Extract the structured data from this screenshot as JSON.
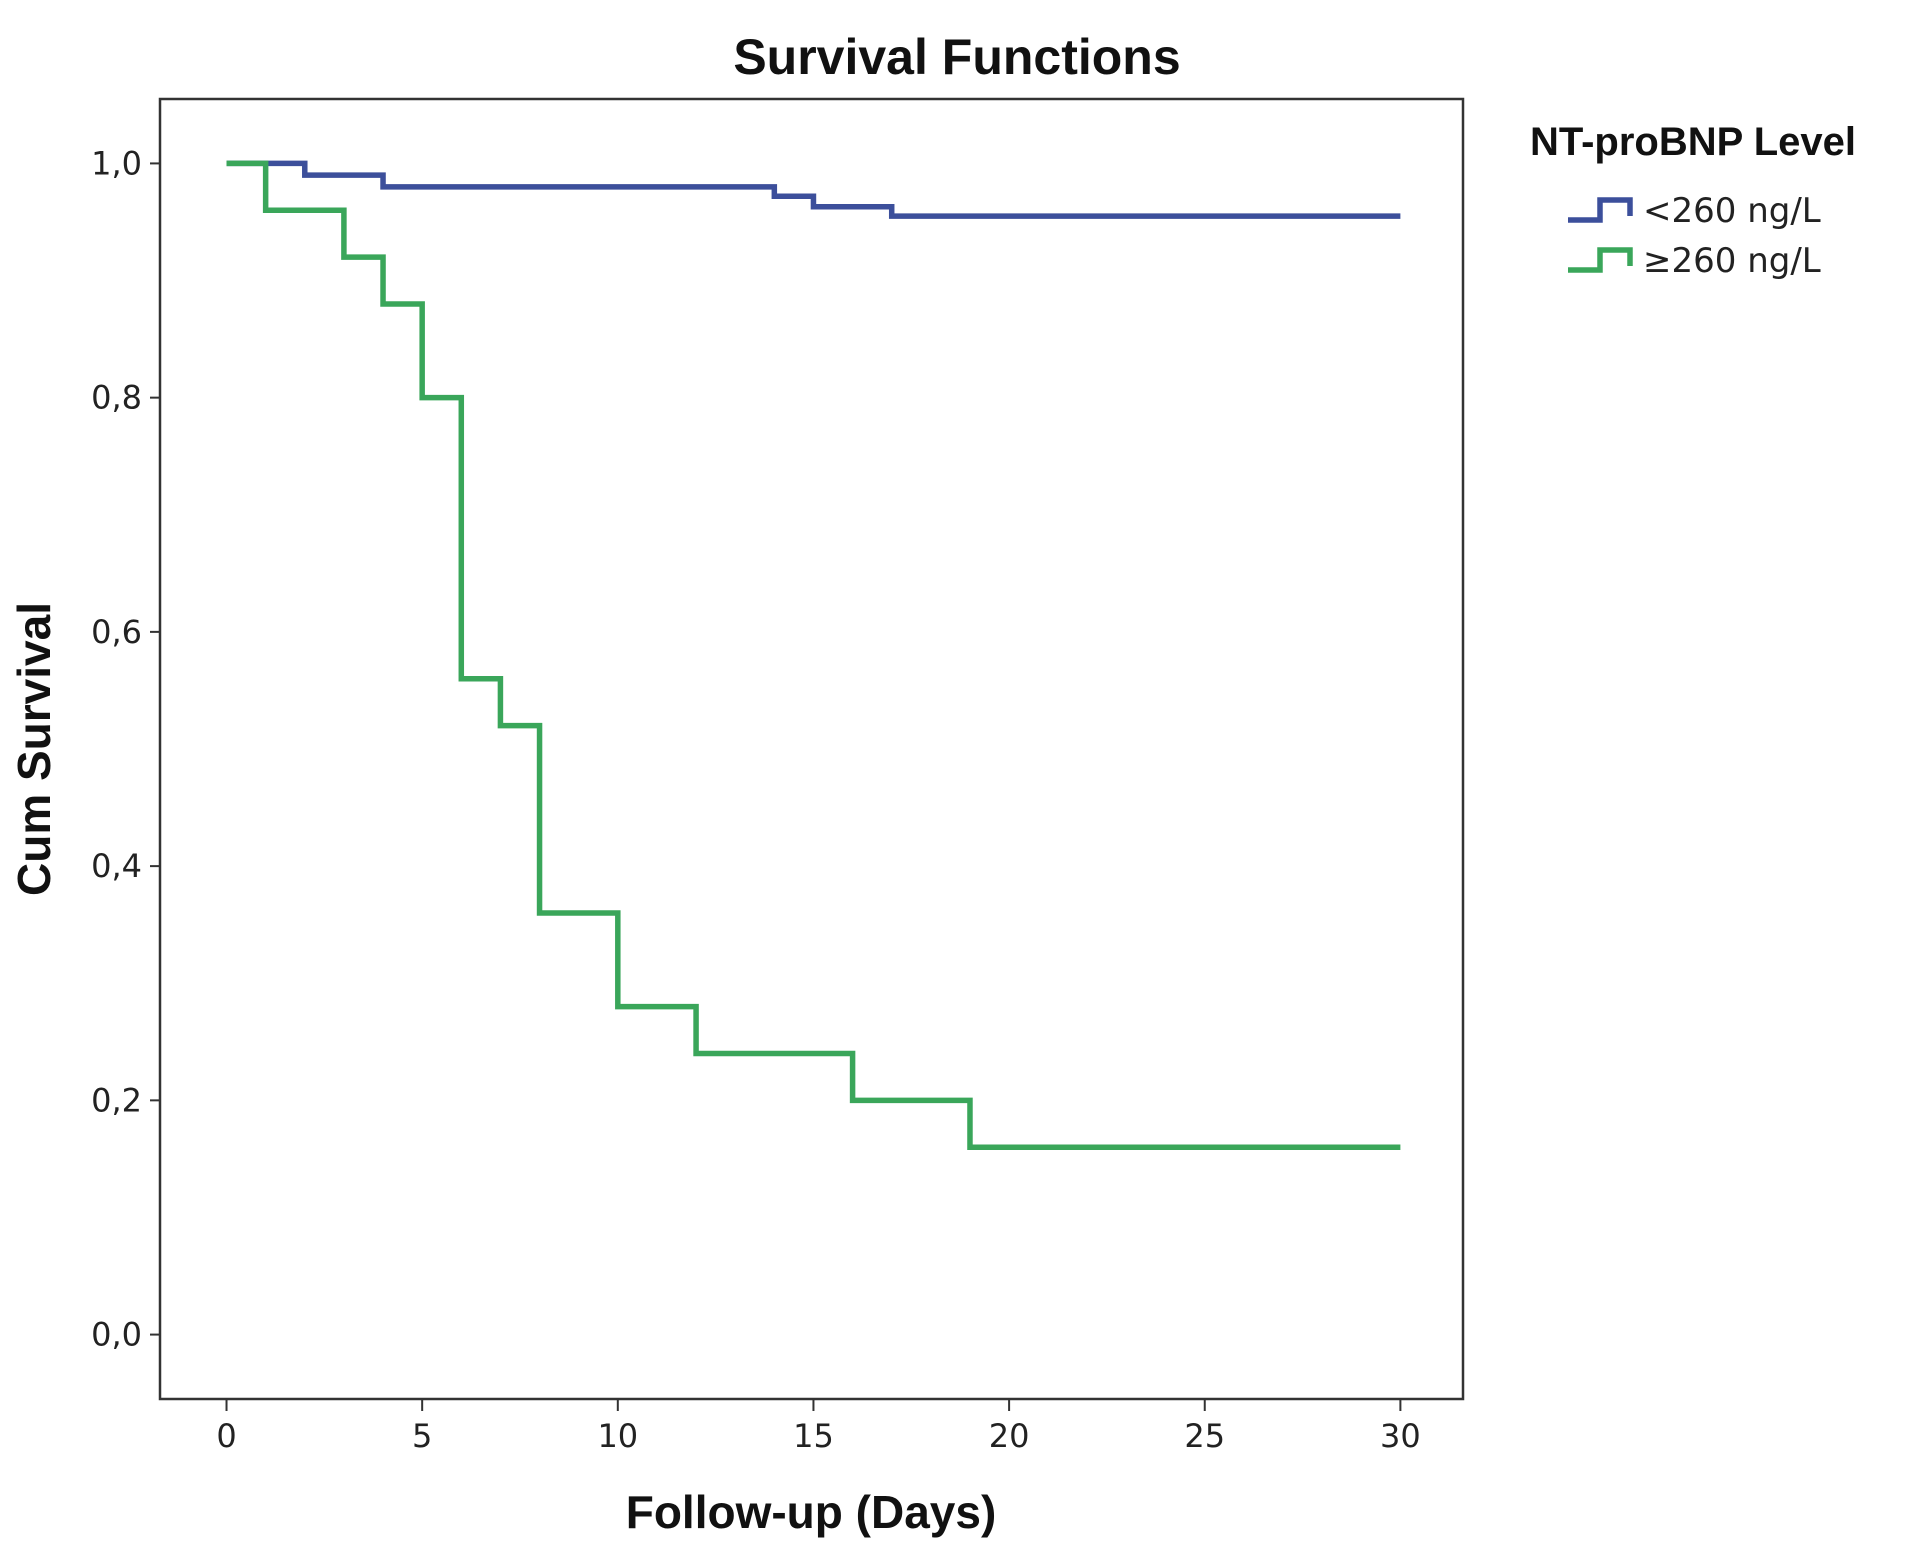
{
  "chart_data": {
    "type": "line",
    "subtype": "step",
    "title": "Survival Functions",
    "xlabel": "Follow-up (Days)",
    "ylabel": "Cum Survival",
    "xlim": [
      -1.7,
      31.6
    ],
    "ylim": [
      -0.055,
      1.055
    ],
    "x_ticks": [
      0,
      5,
      10,
      15,
      20,
      25,
      30
    ],
    "x_tick_labels": [
      "0",
      "5",
      "10",
      "15",
      "20",
      "25",
      "30"
    ],
    "y_ticks": [
      0.0,
      0.2,
      0.4,
      0.6,
      0.8,
      1.0
    ],
    "y_tick_labels": [
      "0,0",
      "0,2",
      "0,4",
      "0,6",
      "0,8",
      "1,0"
    ],
    "grid": false,
    "legend": {
      "title": "NT-proBNP Level",
      "position": "top-right-outside"
    },
    "series": [
      {
        "name": "<260 ng/L",
        "color": "#3c4f9b",
        "x": [
          0,
          2,
          4,
          14,
          15,
          17,
          30
        ],
        "y": [
          1.0,
          0.99,
          0.98,
          0.972,
          0.963,
          0.955,
          0.955
        ]
      },
      {
        "name": "≥260 ng/L",
        "color": "#3aa65a",
        "x": [
          0,
          1,
          3,
          4,
          5,
          6,
          7,
          8,
          10,
          12,
          16,
          19,
          30
        ],
        "y": [
          1.0,
          0.96,
          0.92,
          0.88,
          0.8,
          0.56,
          0.52,
          0.36,
          0.28,
          0.24,
          0.2,
          0.16,
          0.16
        ]
      }
    ]
  }
}
